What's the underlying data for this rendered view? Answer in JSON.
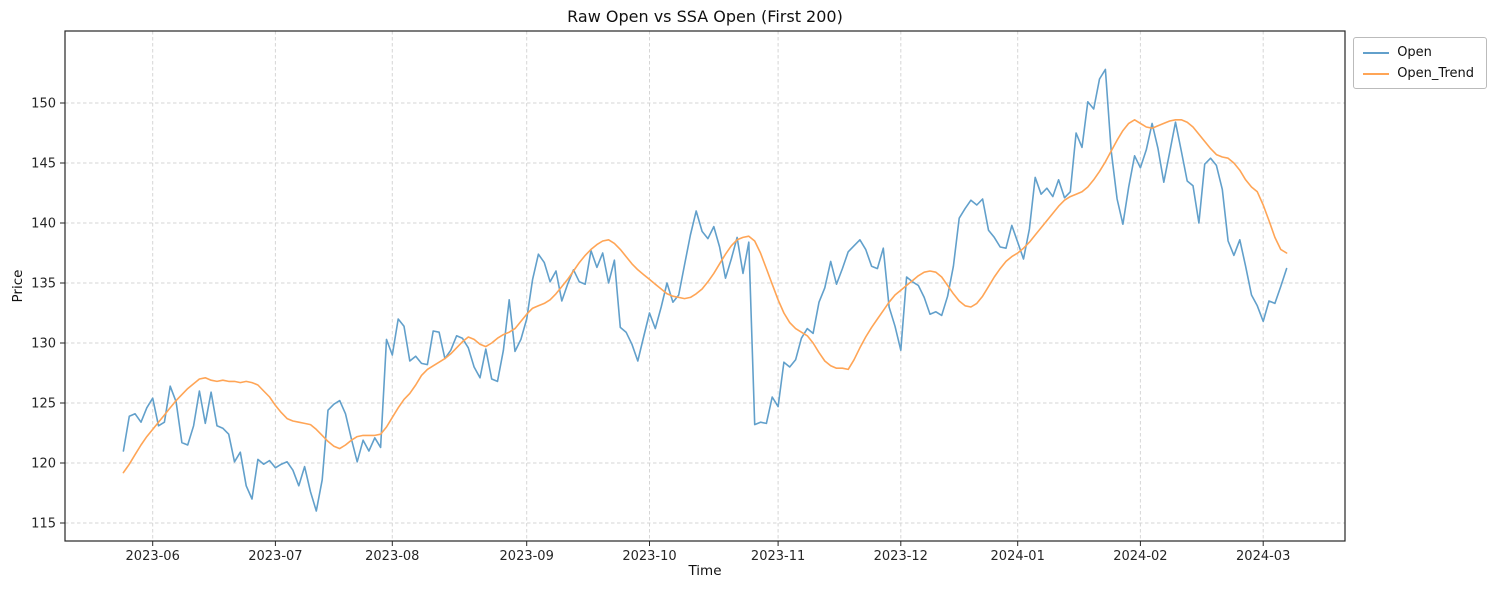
{
  "chart_data": {
    "type": "line",
    "title": "Raw Open vs SSA Open (First 200)",
    "xlabel": "Time",
    "ylabel": "Price",
    "xlim": [
      -10,
      209
    ],
    "ylim": [
      113.5,
      156
    ],
    "grid": true,
    "grid_style": "dashed",
    "legend_position": "upper right, outside plot area",
    "x_tick_positions": [
      5,
      26,
      46,
      69,
      90,
      112,
      133,
      153,
      174,
      195
    ],
    "x_tick_labels": [
      "2023-06",
      "2023-07",
      "2023-08",
      "2023-09",
      "2023-10",
      "2023-11",
      "2023-12",
      "2024-01",
      "2024-02",
      "2024-03"
    ],
    "y_ticks": [
      115,
      120,
      125,
      130,
      135,
      140,
      145,
      150
    ],
    "series": [
      {
        "name": "Open",
        "color": "#62a0cb",
        "values": [
          121.0,
          123.9,
          124.1,
          123.4,
          124.6,
          125.4,
          123.1,
          123.4,
          126.4,
          125.1,
          121.7,
          121.5,
          123.1,
          126.0,
          123.3,
          125.9,
          123.1,
          122.9,
          122.4,
          120.1,
          120.9,
          118.1,
          117.0,
          120.3,
          119.9,
          120.2,
          119.6,
          119.9,
          120.1,
          119.4,
          118.1,
          119.7,
          117.6,
          116.0,
          118.6,
          124.4,
          124.9,
          125.2,
          124.1,
          122.0,
          120.1,
          121.9,
          121.0,
          122.1,
          121.3,
          130.3,
          129.0,
          132.0,
          131.4,
          128.5,
          128.9,
          128.3,
          128.2,
          131.0,
          130.9,
          128.7,
          129.4,
          130.6,
          130.4,
          129.6,
          128.0,
          127.1,
          129.5,
          127.0,
          126.8,
          129.4,
          133.6,
          129.3,
          130.3,
          132.0,
          135.3,
          137.4,
          136.7,
          135.1,
          136.0,
          133.5,
          134.9,
          136.1,
          135.1,
          134.9,
          137.7,
          136.3,
          137.5,
          135.0,
          136.9,
          131.3,
          130.9,
          129.9,
          128.5,
          130.5,
          132.5,
          131.2,
          133.0,
          135.0,
          133.4,
          134.0,
          136.5,
          139.0,
          141.0,
          139.3,
          138.7,
          139.7,
          138.0,
          135.4,
          137.0,
          138.8,
          135.8,
          138.4,
          123.2,
          123.4,
          123.3,
          125.5,
          124.7,
          128.4,
          128.0,
          128.6,
          130.4,
          131.2,
          130.8,
          133.4,
          134.6,
          136.8,
          134.9,
          136.2,
          137.6,
          138.1,
          138.6,
          137.8,
          136.4,
          136.2,
          137.9,
          133.0,
          131.4,
          129.4,
          135.5,
          135.1,
          134.8,
          133.8,
          132.4,
          132.6,
          132.3,
          133.9,
          136.4,
          140.4,
          141.2,
          141.9,
          141.5,
          142.0,
          139.4,
          138.8,
          138.0,
          137.9,
          139.8,
          138.4,
          137.0,
          139.5,
          143.8,
          142.4,
          142.9,
          142.2,
          143.6,
          142.1,
          142.6,
          147.5,
          146.3,
          150.1,
          149.5,
          152.0,
          152.8,
          146.0,
          142.0,
          139.9,
          143.0,
          145.6,
          144.6,
          146.1,
          148.3,
          146.2,
          143.4,
          145.9,
          148.4,
          146.0,
          143.5,
          143.1,
          140.0,
          144.9,
          145.4,
          144.8,
          142.8,
          138.5,
          137.3,
          138.6,
          136.4,
          134.0,
          133.1,
          131.8,
          133.5,
          133.3,
          134.7,
          136.2
        ]
      },
      {
        "name": "Open_Trend",
        "color": "#ffa556",
        "values": [
          119.2,
          119.9,
          120.7,
          121.5,
          122.2,
          122.8,
          123.4,
          124.0,
          124.6,
          125.2,
          125.7,
          126.2,
          126.6,
          127.0,
          127.1,
          126.9,
          126.8,
          126.9,
          126.8,
          126.8,
          126.7,
          126.8,
          126.7,
          126.5,
          126.0,
          125.5,
          124.8,
          124.2,
          123.7,
          123.5,
          123.4,
          123.3,
          123.2,
          122.8,
          122.3,
          121.8,
          121.4,
          121.2,
          121.5,
          121.9,
          122.2,
          122.3,
          122.3,
          122.3,
          122.4,
          123.0,
          123.8,
          124.6,
          125.3,
          125.8,
          126.5,
          127.3,
          127.8,
          128.1,
          128.4,
          128.7,
          129.1,
          129.6,
          130.1,
          130.5,
          130.3,
          129.9,
          129.7,
          130.0,
          130.4,
          130.7,
          130.9,
          131.2,
          131.8,
          132.4,
          132.9,
          133.1,
          133.3,
          133.6,
          134.1,
          134.7,
          135.3,
          136.0,
          136.7,
          137.3,
          137.8,
          138.2,
          138.5,
          138.6,
          138.3,
          137.8,
          137.2,
          136.6,
          136.1,
          135.7,
          135.3,
          134.9,
          134.5,
          134.1,
          133.9,
          133.8,
          133.7,
          133.8,
          134.1,
          134.5,
          135.1,
          135.8,
          136.6,
          137.4,
          138.1,
          138.6,
          138.8,
          138.9,
          138.5,
          137.5,
          136.2,
          134.9,
          133.6,
          132.5,
          131.7,
          131.2,
          130.9,
          130.6,
          130.0,
          129.2,
          128.5,
          128.1,
          127.9,
          127.9,
          127.8,
          128.6,
          129.6,
          130.5,
          131.3,
          132.0,
          132.7,
          133.4,
          134.0,
          134.4,
          134.8,
          135.2,
          135.6,
          135.9,
          136.0,
          135.9,
          135.5,
          134.8,
          134.1,
          133.5,
          133.1,
          133.0,
          133.3,
          133.9,
          134.7,
          135.5,
          136.2,
          136.8,
          137.2,
          137.5,
          137.9,
          138.4,
          139.0,
          139.6,
          140.2,
          140.8,
          141.4,
          141.9,
          142.2,
          142.4,
          142.6,
          143.0,
          143.6,
          144.3,
          145.1,
          146.0,
          146.9,
          147.7,
          148.3,
          148.6,
          148.3,
          148.0,
          147.9,
          148.1,
          148.3,
          148.5,
          148.6,
          148.6,
          148.4,
          148.0,
          147.4,
          146.8,
          146.2,
          145.7,
          145.5,
          145.4,
          145.0,
          144.4,
          143.6,
          143.0,
          142.6,
          141.5,
          140.2,
          138.8,
          137.8,
          137.5
        ]
      }
    ]
  }
}
